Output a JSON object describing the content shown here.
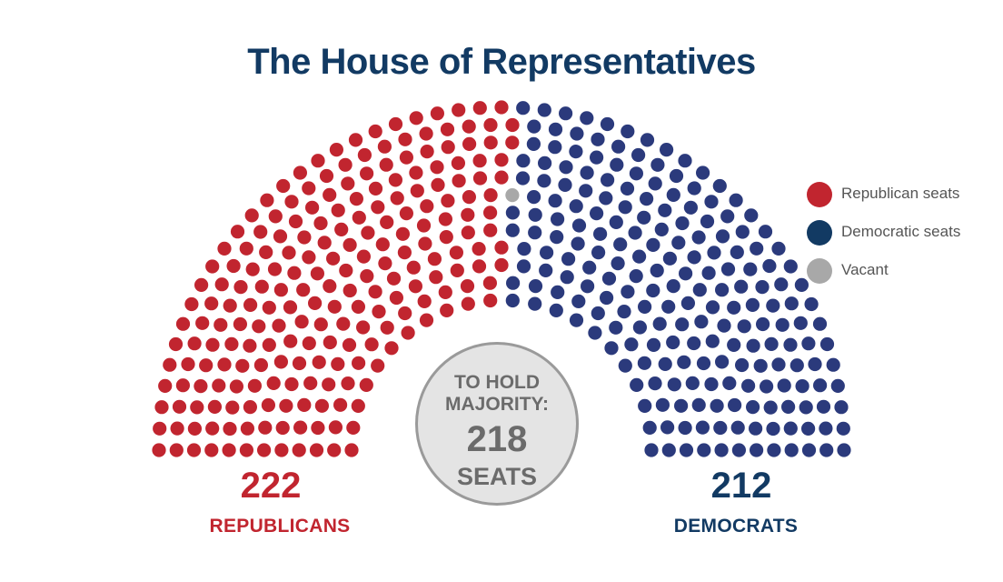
{
  "title": "The House of Representatives",
  "colors": {
    "republican": "#c1252f",
    "democratic": "#2b3a7c",
    "vacant": "#a8a8a8",
    "title": "#123a63"
  },
  "majority": {
    "line1": "TO HOLD",
    "line2": "MAJORITY:",
    "number": "218",
    "unit": "SEATS"
  },
  "republicans": {
    "count": "222",
    "label": "REPUBLICANS"
  },
  "democrats": {
    "count": "212",
    "label": "DEMOCRATS"
  },
  "legend": [
    {
      "label": "Republican seats",
      "color": "#c1252f"
    },
    {
      "label": "Democratic seats",
      "color": "#123a63"
    },
    {
      "label": "Vacant",
      "color": "#a8a8a8"
    }
  ],
  "chart_data": {
    "type": "parliament",
    "title": "The House of Representatives",
    "total_seats": 435,
    "majority_threshold": 218,
    "series": [
      {
        "name": "Republican seats",
        "value": 222,
        "color": "#c1252f"
      },
      {
        "name": "Vacant",
        "value": 1,
        "color": "#a8a8a8"
      },
      {
        "name": "Democratic seats",
        "value": 212,
        "color": "#2b3a7c"
      }
    ]
  }
}
